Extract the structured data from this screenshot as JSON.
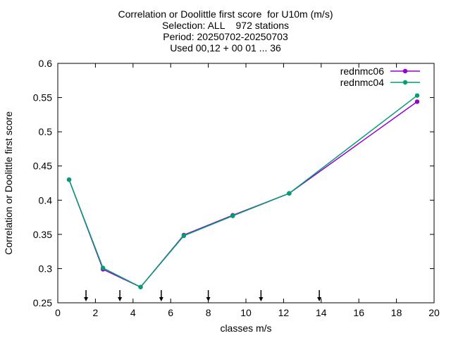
{
  "chart_data": {
    "type": "line",
    "title_lines": [
      "Correlation or Doolittle first score  for U10m (m/s)",
      "Selection: ALL    972 stations",
      "Period: 20250702-20250703",
      "Used 00,12 + 00 01 ... 36"
    ],
    "xlabel": "classes m/s",
    "ylabel": "Correlation or Doolittle first score",
    "xlim": [
      0,
      20
    ],
    "ylim": [
      0.25,
      0.6
    ],
    "x_ticks": [
      0,
      2,
      4,
      6,
      8,
      10,
      12,
      14,
      16,
      18,
      20
    ],
    "y_ticks": [
      0.25,
      0.3,
      0.35,
      0.4,
      0.45,
      0.5,
      0.55,
      0.6
    ],
    "y_tick_labels": [
      "0.25",
      "0.3",
      "0.35",
      "0.4",
      "0.45",
      "0.5",
      "0.55",
      "0.6"
    ],
    "grid": false,
    "legend_position": "top-right",
    "class_markers_x": [
      1.5,
      3.3,
      5.5,
      8.0,
      10.8,
      13.9
    ],
    "series": [
      {
        "name": "rednmc06",
        "color": "#9400d3",
        "x": [
          0.6,
          2.4,
          4.4,
          6.7,
          9.3,
          12.3,
          19.1
        ],
        "y": [
          0.43,
          0.299,
          0.273,
          0.349,
          0.378,
          0.41,
          0.544
        ]
      },
      {
        "name": "rednmc04",
        "color": "#009e73",
        "x": [
          0.6,
          2.4,
          4.4,
          6.7,
          9.3,
          12.3,
          19.1
        ],
        "y": [
          0.43,
          0.301,
          0.273,
          0.348,
          0.377,
          0.41,
          0.553
        ]
      }
    ]
  }
}
